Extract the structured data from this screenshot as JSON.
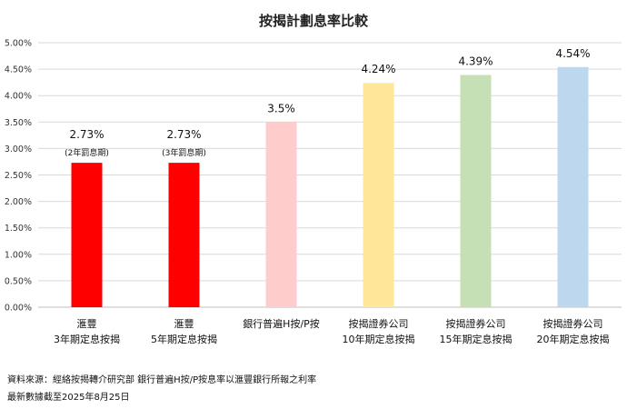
{
  "chart_data": {
    "type": "bar",
    "title": "按揭計劃息率比較",
    "ylim": [
      0,
      5
    ],
    "ytick_step": 0.5,
    "ytick_labels": [
      "0.00%",
      "0.50%",
      "1.00%",
      "1.50%",
      "2.00%",
      "2.50%",
      "3.00%",
      "3.50%",
      "4.00%",
      "4.50%",
      "5.00%"
    ],
    "grid": true,
    "categories": [
      [
        "滙豐",
        "3年期定息按揭"
      ],
      [
        "滙豐",
        "5年期定息按揭"
      ],
      [
        "銀行普遍H按/P按"
      ],
      [
        "按揭證券公司",
        "10年期定息按揭"
      ],
      [
        "按揭證券公司",
        "15年期定息按揭"
      ],
      [
        "按揭證券公司",
        "20年期定息按揭"
      ]
    ],
    "values": [
      2.73,
      2.73,
      3.5,
      4.24,
      4.39,
      4.54
    ],
    "data_labels": [
      "2.73%",
      "2.73%",
      "3.5%",
      "4.24%",
      "4.39%",
      "4.54%"
    ],
    "sub_labels": [
      "(2年罰息期)",
      "(3年罰息期)",
      "",
      "",
      "",
      ""
    ],
    "colors": [
      "#ff0000",
      "#ff0000",
      "#ffcccc",
      "#ffe699",
      "#c5e0b4",
      "#bdd7ee"
    ]
  },
  "footnotes": {
    "source": "資料來源：經絡按揭轉介研究部 銀行普遍H按/P按息率以滙豐銀行所報之利率",
    "updated": "最新數據截至2025年8月25日"
  }
}
